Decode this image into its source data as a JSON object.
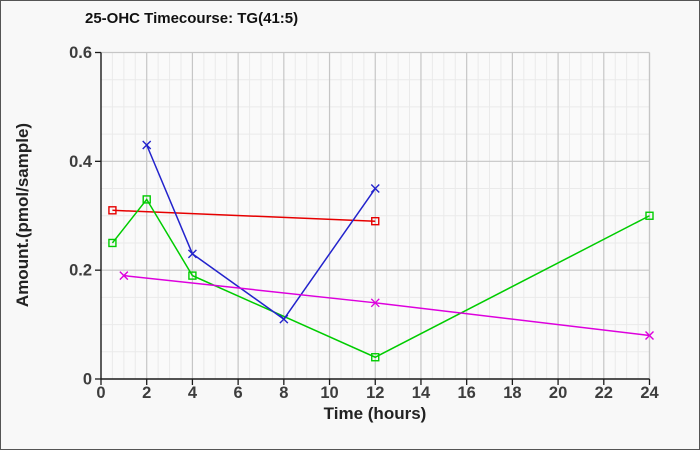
{
  "window": {
    "background": "#f8f8f8",
    "plot_background": "#fafafa",
    "border_color": "#555555"
  },
  "chart_data": {
    "type": "line",
    "title": "25-OHC Timecourse: TG(41:5)",
    "xlabel": "Time (hours)",
    "ylabel": "Amount.(pmol/sample)",
    "xlim": [
      0,
      24
    ],
    "ylim": [
      0,
      0.6
    ],
    "xticks": [
      0,
      2,
      4,
      6,
      8,
      10,
      12,
      14,
      16,
      18,
      20,
      22,
      24
    ],
    "xtick_labels": [
      "0",
      "2",
      "4",
      "6",
      "8",
      "10",
      "12",
      "14",
      "16",
      "18",
      "20",
      "22",
      "24"
    ],
    "yticks": [
      0,
      0.2,
      0.4,
      0.6
    ],
    "ytick_labels": [
      "0",
      "0.2",
      "0.4",
      "0.6"
    ],
    "grid": {
      "minor_x_step": 0.5,
      "minor_y_step": 0.05,
      "minor_color": "#eaeaea",
      "major_color": "#c6c6c6"
    },
    "axis_color": "#1a1a1a",
    "tick_label_color": "#3d3d3d",
    "legend": "none",
    "series": [
      {
        "name": "red-squares",
        "color": "#e60000",
        "marker": "square",
        "x": [
          0.5,
          12
        ],
        "y": [
          0.31,
          0.29
        ]
      },
      {
        "name": "green-squares",
        "color": "#00cc00",
        "marker": "square",
        "x": [
          0.5,
          2,
          4,
          12,
          24
        ],
        "y": [
          0.25,
          0.33,
          0.19,
          0.04,
          0.3
        ]
      },
      {
        "name": "blue-x",
        "color": "#2323cc",
        "marker": "x",
        "x": [
          2,
          4,
          8,
          12
        ],
        "y": [
          0.43,
          0.23,
          0.11,
          0.35
        ]
      },
      {
        "name": "magenta-x",
        "color": "#dd00dd",
        "marker": "x",
        "x": [
          1,
          12,
          24
        ],
        "y": [
          0.19,
          0.14,
          0.08
        ]
      }
    ]
  }
}
